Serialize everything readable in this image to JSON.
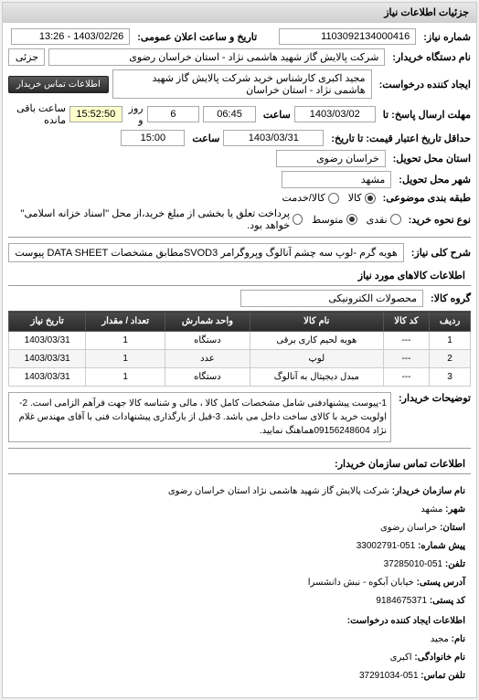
{
  "panel_title": "جزئیات اطلاعات نیاز",
  "need_number_label": "شماره نیاز:",
  "need_number": "1103092134000416",
  "announce_label": "تاریخ و ساعت اعلان عمومی:",
  "announce_date": "1403/02/26 - 13:26",
  "buyer_org_label": "نام دستگاه خریدار:",
  "buyer_org": "شرکت پالایش گاز شهید هاشمی نژاد - استان خراسان رضوی",
  "requester_label": "ایجاد کننده درخواست:",
  "requester": "مجید اکبری کارشناس خرید شرکت پالایش گاز شهید هاشمی نژاد - استان خراسان",
  "contact_btn": "اطلاعات تماس خریدار",
  "deadline_label": "مهلت ارسال پاسخ: تا",
  "deadline_date": "1403/03/02",
  "deadline_time_label": "ساعت",
  "deadline_time": "06:45",
  "remain_days": "6",
  "remain_days_label": "روز و",
  "remain_time": "15:52:50",
  "remain_time_label": "ساعت باقی مانده",
  "validity_label": "حداقل تاریخ اعتبار قیمت: تا تاریخ:",
  "validity_date": "1403/03/31",
  "validity_time_label": "ساعت",
  "validity_time": "15:00",
  "delivery_province_label": "استان محل تحویل:",
  "delivery_province": "خراسان رضوی",
  "delivery_city_label": "شهر محل تحویل:",
  "delivery_city": "مشهد",
  "package_label": "طبقه بندی موضوعی:",
  "package_options": [
    "کالا",
    "کالا/خدمت"
  ],
  "package_selected": 0,
  "payment_label": "نوع نحوه خرید:",
  "payment_options": [
    "نقدی",
    "متوسط",
    "پرداخت تعلق یا بخشی از مبلغ خرید،از محل \"اسناد خزانه اسلامی\" خواهد بود."
  ],
  "payment_selected": 1,
  "need_key_label": "شرح کلی نیاز:",
  "need_key": "هویه گرم -لوپ سه چشم آنالوگ وپروگرامر SVOD3مطابق مشخصات DATA SHEET پیوست",
  "goods_section_title": "اطلاعات کالاهای مورد نیاز",
  "goods_group_label": "گروه کالا:",
  "goods_group": "محصولات الکترونیکی",
  "table": {
    "columns": [
      "ردیف",
      "کد کالا",
      "نام کالا",
      "واحد شمارش",
      "تعداد / مقدار",
      "تاریخ نیاز"
    ],
    "rows": [
      [
        "1",
        "---",
        "هویه لحیم کاری برقی",
        "دستگاه",
        "1",
        "1403/03/31"
      ],
      [
        "2",
        "---",
        "لوپ",
        "عدد",
        "1",
        "1403/03/31"
      ],
      [
        "3",
        "---",
        "مبدل دیجیتال به آنالوگ",
        "دستگاه",
        "1",
        "1403/03/31"
      ]
    ]
  },
  "buyer_desc_label": "توضیحات خریدار:",
  "buyer_desc": "1-پیوست پیشنهادفنی شامل مشخصات کامل کالا ، مالی و شناسه کالا جهت فرآهم الزامی است. 2- اولویت خرید با کالای ساخت داخل می باشد. 3-قبل از بارگذاری پیشنهادات فنی با آقای مهندس غلام نژاد 09156248604هماهنگ نمایید.",
  "contact_title": "اطلاعات تماس سازمان خریدار:",
  "contact": {
    "org_label": "نام سازمان خریدار:",
    "org": "شرکت پالایش گاز شهید هاشمی نژاد استان خراسان رضوی",
    "city_label": "شهر:",
    "city": "مشهد",
    "province_label": "استان:",
    "province": "خراسان رضوی",
    "prefix_label": "پیش شماره:",
    "prefix": "051-33002791",
    "phone_label": "تلفن:",
    "phone": "051-37285010",
    "address_label": "آدرس پستی:",
    "address": "خیابان آبکوه - نبش دانشسرا",
    "postal_label": "کد پستی:",
    "postal": "9184675371",
    "creator_title": "اطلاعات ایجاد کننده درخواست:",
    "creator_name_label": "نام:",
    "creator_name": "مجید",
    "creator_family_label": "نام خانوادگی:",
    "creator_family": "اکبری",
    "creator_phone_label": "تلفن تماس:",
    "creator_phone": "051-37291034"
  }
}
